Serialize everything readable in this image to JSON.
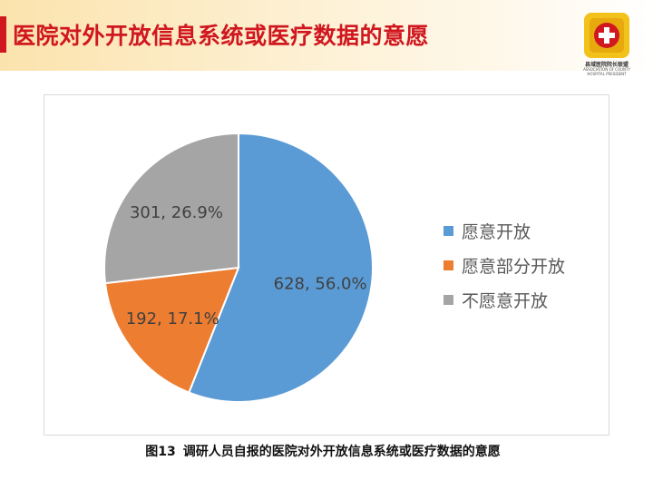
{
  "header": {
    "title": "医院对外开放信息系统或医疗数据的意愿"
  },
  "logo": {
    "name_cn": "县域医院院长联盟",
    "name_en": "ASSOCIATION OF COUNTY HOSPITAL PRESIDENT"
  },
  "caption": {
    "figure_number": "图13",
    "text": "调研人员自报的医院对外开放信息系统或医疗数据的意愿"
  },
  "colors": {
    "accent": "#d0171f",
    "series_blue": "#5b9bd5",
    "series_orange": "#ed7d31",
    "series_gray": "#a5a5a5"
  },
  "chart_data": {
    "type": "pie",
    "slices": [
      {
        "label": "愿意开放",
        "value": 628,
        "percent": "56.0%",
        "data_label": "628, 56.0%",
        "color": "#5b9bd5"
      },
      {
        "label": "愿意部分开放",
        "value": 192,
        "percent": "17.1%",
        "data_label": "192, 17.1%",
        "color": "#ed7d31"
      },
      {
        "label": "不愿意开放",
        "value": 301,
        "percent": "26.9%",
        "data_label": "301, 26.9%",
        "color": "#a5a5a5"
      }
    ],
    "legend_position": "right",
    "start_angle": "12 o'clock",
    "direction": "clockwise"
  }
}
